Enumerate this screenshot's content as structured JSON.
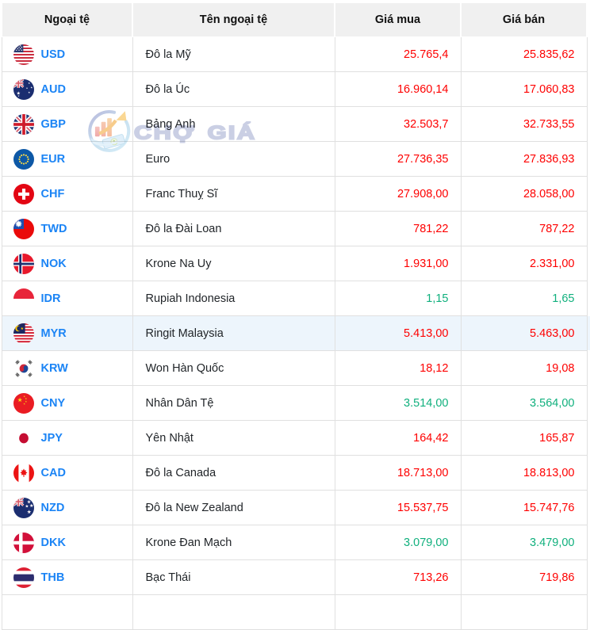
{
  "header": {
    "columns": [
      "Ngoại tệ",
      "Tên ngoại tệ",
      "Giá mua",
      "Giá bán"
    ]
  },
  "watermark": {
    "text": "CHỢ GIÁ"
  },
  "colors": {
    "code_blue": "#1b84f5",
    "value_red": "#fe0000",
    "value_green": "#10b07d",
    "highlight_row_bg": "#edf5fc",
    "header_bg": "#f0f0f0"
  },
  "rows": [
    {
      "code": "USD",
      "flag": "us",
      "name": "Đô la Mỹ",
      "buy": "25.765,4",
      "sell": "25.835,62",
      "color": "red",
      "highlight": false
    },
    {
      "code": "AUD",
      "flag": "au",
      "name": "Đô la Úc",
      "buy": "16.960,14",
      "sell": "17.060,83",
      "color": "red",
      "highlight": false
    },
    {
      "code": "GBP",
      "flag": "gb",
      "name": "Bảng Anh",
      "buy": "32.503,7",
      "sell": "32.733,55",
      "color": "red",
      "highlight": false
    },
    {
      "code": "EUR",
      "flag": "eu",
      "name": "Euro",
      "buy": "27.736,35",
      "sell": "27.836,93",
      "color": "red",
      "highlight": false
    },
    {
      "code": "CHF",
      "flag": "ch",
      "name": "Franc Thuỵ Sĩ",
      "buy": "27.908,00",
      "sell": "28.058,00",
      "color": "red",
      "highlight": false
    },
    {
      "code": "TWD",
      "flag": "tw",
      "name": "Đô la Đài Loan",
      "buy": "781,22",
      "sell": "787,22",
      "color": "red",
      "highlight": false
    },
    {
      "code": "NOK",
      "flag": "no",
      "name": "Krone Na Uy",
      "buy": "1.931,00",
      "sell": "2.331,00",
      "color": "red",
      "highlight": false
    },
    {
      "code": "IDR",
      "flag": "id",
      "name": "Rupiah Indonesia",
      "buy": "1,15",
      "sell": "1,65",
      "color": "green",
      "highlight": false
    },
    {
      "code": "MYR",
      "flag": "my",
      "name": "Ringit Malaysia",
      "buy": "5.413,00",
      "sell": "5.463,00",
      "color": "red",
      "highlight": true
    },
    {
      "code": "KRW",
      "flag": "kr",
      "name": "Won Hàn Quốc",
      "buy": "18,12",
      "sell": "19,08",
      "color": "red",
      "highlight": false
    },
    {
      "code": "CNY",
      "flag": "cn",
      "name": "Nhân Dân Tệ",
      "buy": "3.514,00",
      "sell": "3.564,00",
      "color": "green",
      "highlight": false
    },
    {
      "code": "JPY",
      "flag": "jp",
      "name": "Yên Nhật",
      "buy": "164,42",
      "sell": "165,87",
      "color": "red",
      "highlight": false
    },
    {
      "code": "CAD",
      "flag": "ca",
      "name": "Đô la Canada",
      "buy": "18.713,00",
      "sell": "18.813,00",
      "color": "red",
      "highlight": false
    },
    {
      "code": "NZD",
      "flag": "nz",
      "name": "Đô la New Zealand",
      "buy": "15.537,75",
      "sell": "15.747,76",
      "color": "red",
      "highlight": false
    },
    {
      "code": "DKK",
      "flag": "dk",
      "name": "Krone Đan Mạch",
      "buy": "3.079,00",
      "sell": "3.479,00",
      "color": "green",
      "highlight": false
    },
    {
      "code": "THB",
      "flag": "th",
      "name": "Bạc Thái",
      "buy": "713,26",
      "sell": "719,86",
      "color": "red",
      "highlight": false
    }
  ]
}
